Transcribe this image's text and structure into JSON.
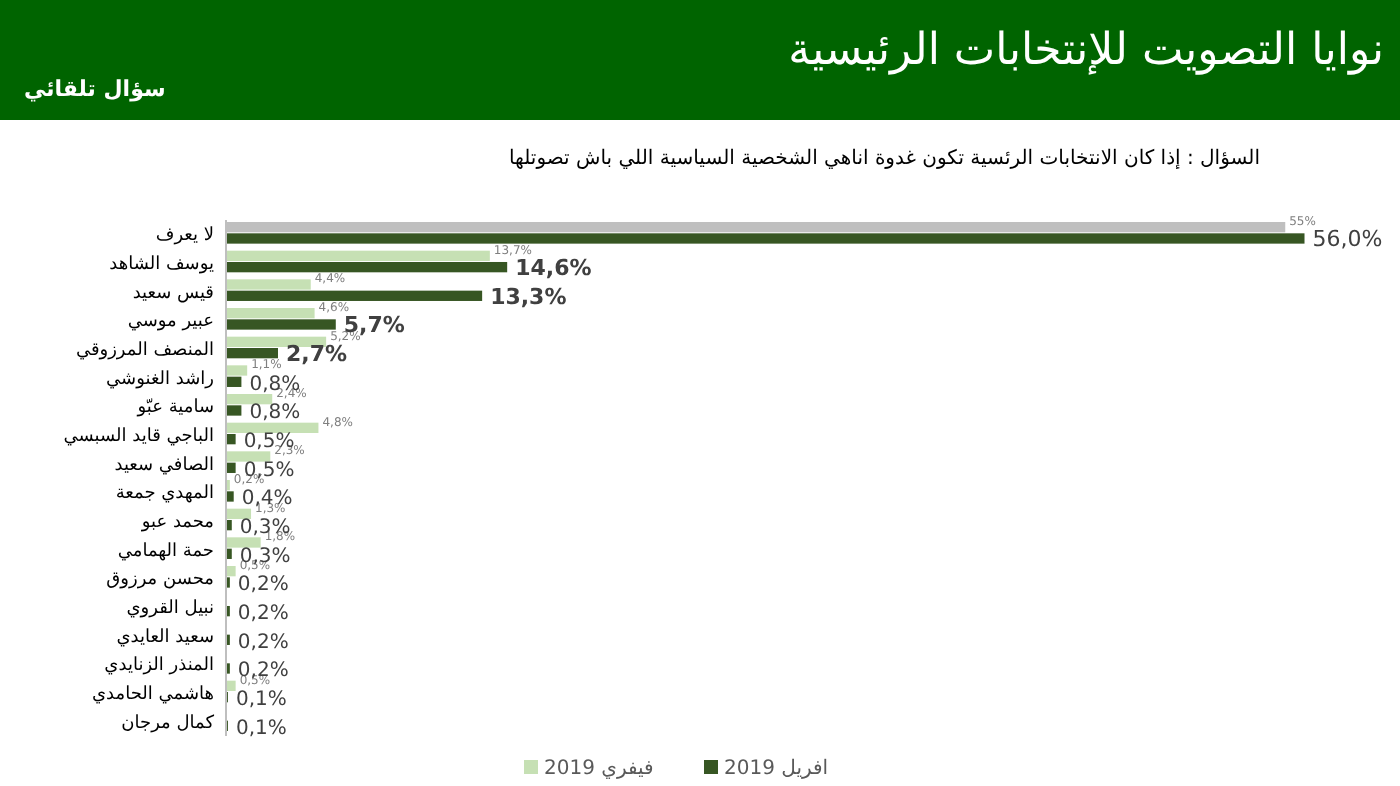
{
  "chart_data": {
    "type": "bar",
    "orientation": "horizontal",
    "title": "نوايا التصويت للإنتخابات الرئيسية",
    "subtitle": "السؤال : إذا كان الانتخابات الرئسية تكون غدوة اناهي الشخصية السياسية اللي باش تصوتلها",
    "annotations": [
      "سؤال تلقائي"
    ],
    "categories": [
      "لا يعرف",
      "يوسف الشاهد",
      "قيس سعيد",
      "عبير موسي",
      "المنصف المرزوقي",
      "راشد الغنوشي",
      "سامية عبّو",
      "الباجي قايد السبسي",
      "الصافي سعيد",
      "المهدي جمعة",
      "محمد عبو",
      "حمة الهمامي",
      "محسن مرزوق",
      "نبيل القروي",
      "سعيد العايدي",
      "المنذر الزنايدي",
      "هاشمي الحامدي",
      "كمال مرجان"
    ],
    "series": [
      {
        "name": "فيفري 2019",
        "color": "#c6e0b4",
        "colors": [
          "#bfbfbf",
          "#c6e0b4",
          "#c6e0b4",
          "#c6e0b4",
          "#c6e0b4",
          "#c6e0b4",
          "#c6e0b4",
          "#c6e0b4",
          "#c6e0b4",
          "#c6e0b4",
          "#c6e0b4",
          "#c6e0b4",
          "#c6e0b4",
          null,
          null,
          null,
          "#c6e0b4",
          null
        ],
        "values": [
          55,
          13.7,
          4.4,
          4.6,
          5.2,
          1.1,
          2.4,
          4.8,
          2.3,
          0.2,
          1.3,
          1.8,
          0.5,
          null,
          null,
          null,
          0.5,
          null
        ],
        "value_labels": [
          "55%",
          "13,7%",
          "4,4%",
          "4,6%",
          "5,2%",
          "1,1%",
          "2,4%",
          "4,8%",
          "2,3%",
          "0,2%",
          "1,3%",
          "1,8%",
          "0,5%",
          null,
          null,
          null,
          "0,5%",
          null
        ]
      },
      {
        "name": "افريل 2019",
        "color": "#375623",
        "values": [
          56,
          14.6,
          13.3,
          5.7,
          2.7,
          0.8,
          0.8,
          0.5,
          0.5,
          0.4,
          0.3,
          0.3,
          0.2,
          0.2,
          0.2,
          0.2,
          0.1,
          0.1
        ],
        "value_labels": [
          "56,0%",
          "14,6%",
          "13,3%",
          "5,7%",
          "2,7%",
          "0,8%",
          "0,8%",
          "0,5%",
          "0,5%",
          "0,4%",
          "0,3%",
          "0,3%",
          "0,2%",
          "0,2%",
          "0,2%",
          "0,2%",
          "0,1%",
          "0,1%"
        ]
      }
    ],
    "legend": "bottom"
  }
}
